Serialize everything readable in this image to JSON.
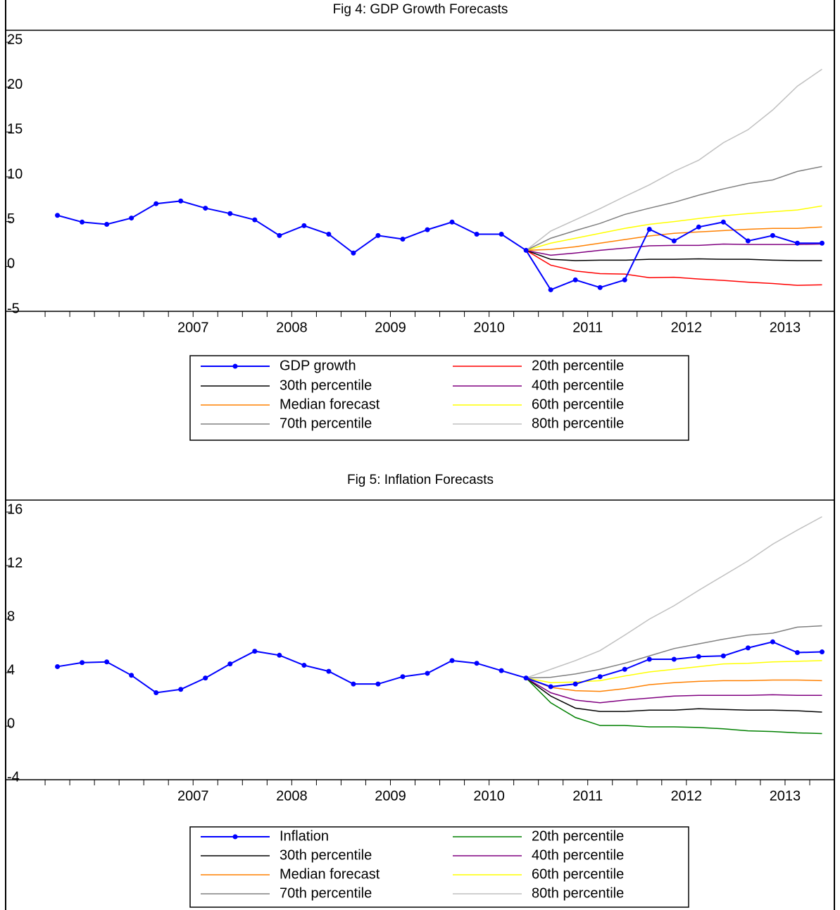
{
  "chart_data": [
    {
      "type": "line",
      "title": "Fig 4: GDP Growth Forecasts",
      "x": [
        2006.125,
        2006.375,
        2006.625,
        2006.875,
        2007.125,
        2007.375,
        2007.625,
        2007.875,
        2008.125,
        2008.375,
        2008.625,
        2008.875,
        2009.125,
        2009.375,
        2009.625,
        2009.875,
        2010.125,
        2010.375,
        2010.625,
        2010.875,
        2011.125,
        2011.375,
        2011.625,
        2011.875,
        2012.125,
        2012.375,
        2012.625,
        2012.875,
        2013.125,
        2013.375,
        2013.625,
        2013.875
      ],
      "xlim": [
        2005.6,
        2014.0
      ],
      "xticks": [
        {
          "value": 2007.5,
          "label": "2007"
        },
        {
          "value": 2008.5,
          "label": "2008"
        },
        {
          "value": 2009.5,
          "label": "2009"
        },
        {
          "value": 2010.5,
          "label": "2010"
        },
        {
          "value": 2011.5,
          "label": "2011"
        },
        {
          "value": 2012.5,
          "label": "2012"
        },
        {
          "value": 2013.5,
          "label": "2013"
        }
      ],
      "ylim": [
        -5,
        25
      ],
      "yticks": [
        -5,
        0,
        5,
        10,
        15,
        20,
        25
      ],
      "series": [
        {
          "name": "GDP growth",
          "color": "#0000ff",
          "markers": true,
          "values": [
            5.7,
            4.95,
            4.7,
            5.4,
            7.0,
            7.3,
            6.5,
            5.9,
            5.2,
            3.45,
            4.55,
            3.6,
            1.5,
            3.45,
            3.05,
            4.1,
            4.95,
            3.6,
            3.6,
            1.8,
            -2.6,
            -1.5,
            -2.35,
            -1.5,
            4.15,
            2.85,
            4.4,
            4.95,
            2.85,
            3.45,
            2.6,
            2.6
          ]
        },
        {
          "name": "20th percentile",
          "color": "#ff0000",
          "values": [
            null,
            null,
            null,
            null,
            null,
            null,
            null,
            null,
            null,
            null,
            null,
            null,
            null,
            null,
            null,
            null,
            null,
            null,
            null,
            1.8,
            0.15,
            -0.5,
            -0.8,
            -0.85,
            -1.25,
            -1.2,
            -1.4,
            -1.55,
            -1.75,
            -1.9,
            -2.1,
            -2.05
          ]
        },
        {
          "name": "30th percentile",
          "color": "#000000",
          "values": [
            null,
            null,
            null,
            null,
            null,
            null,
            null,
            null,
            null,
            null,
            null,
            null,
            null,
            null,
            null,
            null,
            null,
            null,
            null,
            1.8,
            0.8,
            0.65,
            0.7,
            0.7,
            0.8,
            0.8,
            0.85,
            0.8,
            0.8,
            0.7,
            0.65,
            0.65
          ]
        },
        {
          "name": "40th percentile",
          "color": "#800080",
          "values": [
            null,
            null,
            null,
            null,
            null,
            null,
            null,
            null,
            null,
            null,
            null,
            null,
            null,
            null,
            null,
            null,
            null,
            null,
            null,
            1.8,
            1.25,
            1.5,
            1.8,
            2.05,
            2.3,
            2.35,
            2.35,
            2.5,
            2.45,
            2.45,
            2.45,
            2.5
          ]
        },
        {
          "name": "Median forecast",
          "color": "#ff8000",
          "values": [
            null,
            null,
            null,
            null,
            null,
            null,
            null,
            null,
            null,
            null,
            null,
            null,
            null,
            null,
            null,
            null,
            null,
            null,
            null,
            1.8,
            1.9,
            2.2,
            2.6,
            3.0,
            3.4,
            3.7,
            3.85,
            4.0,
            4.15,
            4.25,
            4.25,
            4.4
          ]
        },
        {
          "name": "60th percentile",
          "color": "#ffff00",
          "values": [
            null,
            null,
            null,
            null,
            null,
            null,
            null,
            null,
            null,
            null,
            null,
            null,
            null,
            null,
            null,
            null,
            null,
            null,
            null,
            1.8,
            2.6,
            3.15,
            3.7,
            4.25,
            4.7,
            5.0,
            5.35,
            5.65,
            5.9,
            6.1,
            6.3,
            6.75
          ]
        },
        {
          "name": "70th percentile",
          "color": "#808080",
          "values": [
            null,
            null,
            null,
            null,
            null,
            null,
            null,
            null,
            null,
            null,
            null,
            null,
            null,
            null,
            null,
            null,
            null,
            null,
            null,
            1.8,
            3.15,
            4.0,
            4.8,
            5.8,
            6.5,
            7.15,
            7.95,
            8.65,
            9.25,
            9.65,
            10.6,
            11.15
          ]
        },
        {
          "name": "80th percentile",
          "color": "#c0c0c0",
          "values": [
            null,
            null,
            null,
            null,
            null,
            null,
            null,
            null,
            null,
            null,
            null,
            null,
            null,
            null,
            null,
            null,
            null,
            null,
            null,
            1.8,
            3.95,
            5.2,
            6.45,
            7.8,
            9.1,
            10.6,
            11.85,
            13.8,
            15.25,
            17.45,
            20.1,
            22.0
          ]
        }
      ]
    },
    {
      "type": "line",
      "title": "Fig 5: Inflation Forecasts",
      "x": [
        2006.125,
        2006.375,
        2006.625,
        2006.875,
        2007.125,
        2007.375,
        2007.625,
        2007.875,
        2008.125,
        2008.375,
        2008.625,
        2008.875,
        2009.125,
        2009.375,
        2009.625,
        2009.875,
        2010.125,
        2010.375,
        2010.625,
        2010.875,
        2011.125,
        2011.375,
        2011.625,
        2011.875,
        2012.125,
        2012.375,
        2012.625,
        2012.875,
        2013.125,
        2013.375,
        2013.625,
        2013.875
      ],
      "xlim": [
        2005.6,
        2014.0
      ],
      "xticks": [
        {
          "value": 2007.5,
          "label": "2007"
        },
        {
          "value": 2008.5,
          "label": "2008"
        },
        {
          "value": 2009.5,
          "label": "2009"
        },
        {
          "value": 2010.5,
          "label": "2010"
        },
        {
          "value": 2011.5,
          "label": "2011"
        },
        {
          "value": 2012.5,
          "label": "2012"
        },
        {
          "value": 2013.5,
          "label": "2013"
        }
      ],
      "ylim": [
        -4,
        16
      ],
      "yticks": [
        -4,
        0,
        4,
        8,
        12,
        16
      ],
      "series": [
        {
          "name": "Inflation",
          "color": "#0000ff",
          "markers": true,
          "values": [
            4.45,
            4.75,
            4.8,
            3.8,
            2.5,
            2.75,
            3.6,
            4.65,
            5.6,
            5.3,
            4.55,
            4.1,
            3.15,
            3.15,
            3.7,
            3.95,
            4.9,
            4.7,
            4.15,
            3.6,
            2.95,
            3.15,
            3.7,
            4.25,
            5.0,
            5.0,
            5.2,
            5.25,
            5.85,
            6.3,
            5.5,
            5.55
          ]
        },
        {
          "name": "20th percentile",
          "color": "#008000",
          "values": [
            null,
            null,
            null,
            null,
            null,
            null,
            null,
            null,
            null,
            null,
            null,
            null,
            null,
            null,
            null,
            null,
            null,
            null,
            null,
            3.6,
            1.75,
            0.65,
            0.05,
            0.05,
            -0.05,
            -0.05,
            -0.1,
            -0.2,
            -0.35,
            -0.4,
            -0.5,
            -0.55
          ]
        },
        {
          "name": "30th percentile",
          "color": "#000000",
          "values": [
            null,
            null,
            null,
            null,
            null,
            null,
            null,
            null,
            null,
            null,
            null,
            null,
            null,
            null,
            null,
            null,
            null,
            null,
            null,
            3.6,
            2.25,
            1.35,
            1.1,
            1.1,
            1.2,
            1.2,
            1.3,
            1.25,
            1.2,
            1.2,
            1.15,
            1.05
          ]
        },
        {
          "name": "40th percentile",
          "color": "#800080",
          "values": [
            null,
            null,
            null,
            null,
            null,
            null,
            null,
            null,
            null,
            null,
            null,
            null,
            null,
            null,
            null,
            null,
            null,
            null,
            null,
            3.6,
            2.5,
            1.95,
            1.75,
            1.95,
            2.1,
            2.25,
            2.3,
            2.3,
            2.3,
            2.35,
            2.3,
            2.3
          ]
        },
        {
          "name": "Median forecast",
          "color": "#ff8000",
          "values": [
            null,
            null,
            null,
            null,
            null,
            null,
            null,
            null,
            null,
            null,
            null,
            null,
            null,
            null,
            null,
            null,
            null,
            null,
            null,
            3.6,
            2.9,
            2.65,
            2.6,
            2.8,
            3.1,
            3.25,
            3.35,
            3.4,
            3.4,
            3.45,
            3.45,
            3.4
          ]
        },
        {
          "name": "60th percentile",
          "color": "#ffff00",
          "values": [
            null,
            null,
            null,
            null,
            null,
            null,
            null,
            null,
            null,
            null,
            null,
            null,
            null,
            null,
            null,
            null,
            null,
            null,
            null,
            3.6,
            3.25,
            3.3,
            3.4,
            3.75,
            4.05,
            4.25,
            4.45,
            4.65,
            4.7,
            4.8,
            4.85,
            4.9
          ]
        },
        {
          "name": "70th percentile",
          "color": "#808080",
          "values": [
            null,
            null,
            null,
            null,
            null,
            null,
            null,
            null,
            null,
            null,
            null,
            null,
            null,
            null,
            null,
            null,
            null,
            null,
            null,
            3.6,
            3.65,
            3.9,
            4.25,
            4.7,
            5.25,
            5.8,
            6.15,
            6.5,
            6.8,
            6.95,
            7.4,
            7.5
          ]
        },
        {
          "name": "80th percentile",
          "color": "#c0c0c0",
          "values": [
            null,
            null,
            null,
            null,
            null,
            null,
            null,
            null,
            null,
            null,
            null,
            null,
            null,
            null,
            null,
            null,
            null,
            null,
            null,
            3.6,
            4.25,
            4.9,
            5.65,
            6.8,
            8.0,
            9.0,
            10.15,
            11.25,
            12.35,
            13.6,
            14.65,
            15.65
          ]
        }
      ]
    }
  ]
}
